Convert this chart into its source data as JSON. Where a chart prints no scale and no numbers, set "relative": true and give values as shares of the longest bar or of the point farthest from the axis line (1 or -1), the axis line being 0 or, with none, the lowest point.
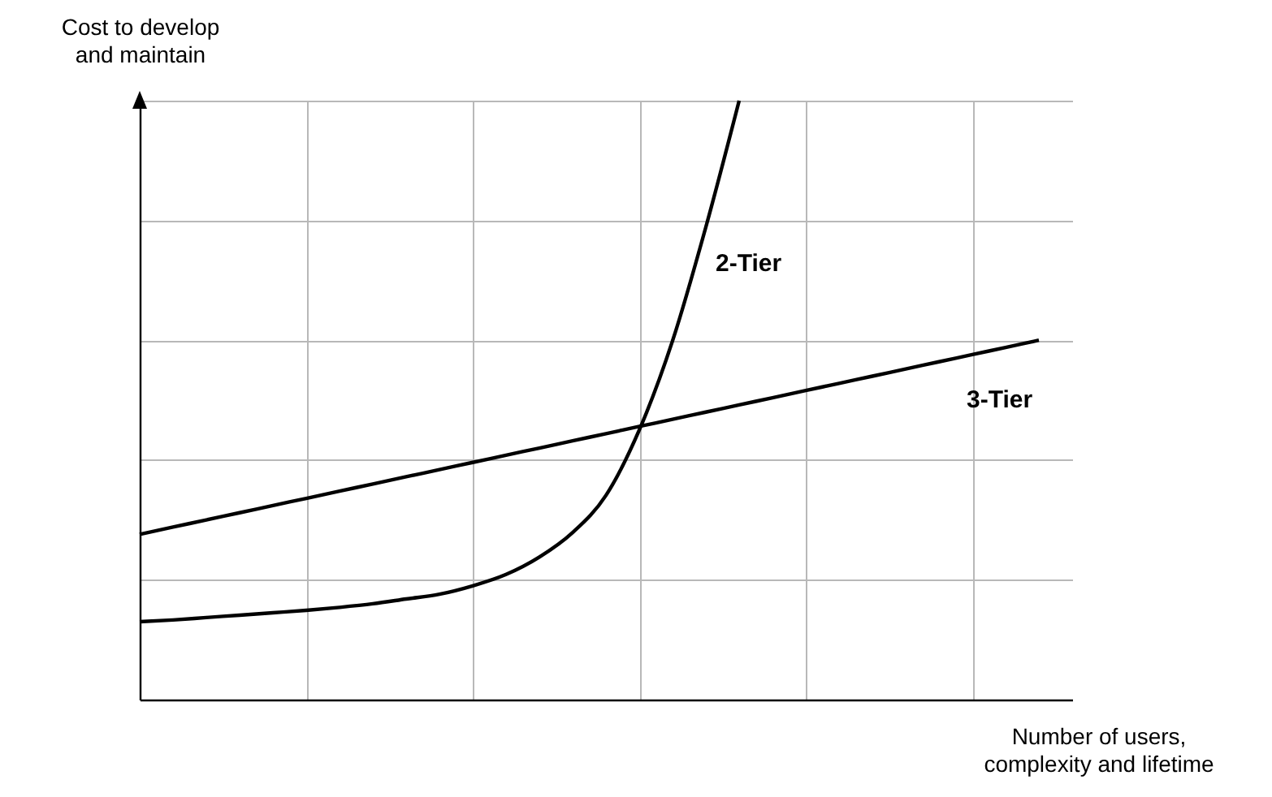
{
  "chart_data": {
    "type": "line",
    "relative": true,
    "xlabel": "Number of users, complexity and lifetime",
    "ylabel": "Cost to develop and maintain",
    "grid": true,
    "legend": false,
    "marker": "none",
    "line_style": "solid",
    "categories": [
      null,
      null,
      null,
      null,
      null,
      null,
      null,
      null,
      null,
      null,
      null,
      null,
      null,
      null,
      null,
      null,
      null,
      null,
      null,
      null,
      null,
      null,
      null,
      null,
      null,
      null,
      null,
      null,
      null
    ],
    "series": [
      {
        "name": "2-Tier",
        "color": "#000000",
        "values": [
          0.13,
          0.133,
          0.137,
          0.141,
          0.145,
          0.149,
          0.154,
          0.16,
          0.168,
          0.176,
          0.19,
          0.209,
          0.238,
          0.279,
          0.341,
          0.45,
          0.599,
          0.789,
          1,
          null,
          null,
          null,
          null,
          null,
          null,
          null,
          null,
          null,
          null
        ]
      },
      {
        "name": "3-Tier",
        "color": "#000000",
        "values": [
          0.276,
          0.288,
          0.3,
          0.312,
          0.324,
          0.336,
          0.348,
          0.36,
          0.372,
          0.384,
          0.396,
          0.408,
          0.42,
          0.432,
          0.444,
          0.456,
          0.468,
          0.48,
          0.492,
          0.504,
          0.516,
          0.528,
          0.54,
          0.552,
          0.564,
          0.576,
          0.588,
          0.6,
          null
        ]
      }
    ]
  }
}
